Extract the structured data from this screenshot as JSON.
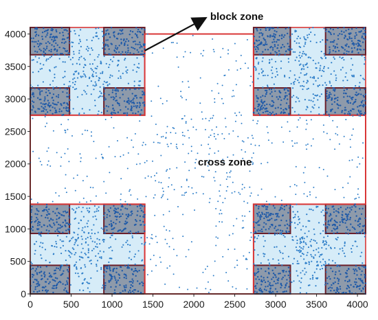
{
  "chart_data": {
    "type": "scatter",
    "title": "",
    "xlabel": "",
    "ylabel": "",
    "xlim": [
      0,
      4100
    ],
    "ylim": [
      0,
      4100
    ],
    "xticks": [
      "0",
      "500",
      "1000",
      "1500",
      "2000",
      "2500",
      "3000",
      "3500",
      "4000"
    ],
    "yticks": [
      "0",
      "500",
      "1000",
      "1500",
      "2000",
      "2500",
      "3000",
      "3500",
      "4000"
    ],
    "grid": false,
    "colors": {
      "points": "#2f7fc9",
      "points_dense": "#1f5aa8",
      "zone_outline": "#d93636",
      "block_outline": "#6b1f2a",
      "block_fill": "#8e9aaa",
      "district_fill": "#d6ecf8",
      "axis": "#222222"
    },
    "annotations": [
      {
        "text": "block zone",
        "x": 2200,
        "y": 4280,
        "arrow_to": [
          1350,
          3680
        ]
      },
      {
        "text": "cross zone",
        "x": 2050,
        "y": 2040
      }
    ],
    "zones": {
      "cross_zone": {
        "vertical_band": {
          "x": [
            1400,
            2730
          ],
          "y": [
            0,
            4000
          ]
        },
        "horizontal_band": {
          "x": [
            0,
            4100
          ],
          "y": [
            1380,
            2750
          ]
        }
      },
      "districts": [
        {
          "x": [
            0,
            1400
          ],
          "y": [
            2750,
            4100
          ]
        },
        {
          "x": [
            2730,
            4100
          ],
          "y": [
            2750,
            4100
          ]
        },
        {
          "x": [
            0,
            1400
          ],
          "y": [
            0,
            1380
          ]
        },
        {
          "x": [
            2730,
            4100
          ],
          "y": [
            0,
            1380
          ]
        }
      ],
      "blocks": [
        {
          "x": [
            0,
            480
          ],
          "y": [
            3680,
            4100
          ]
        },
        {
          "x": [
            900,
            1400
          ],
          "y": [
            3680,
            4100
          ]
        },
        {
          "x": [
            0,
            480
          ],
          "y": [
            2750,
            3170
          ]
        },
        {
          "x": [
            900,
            1400
          ],
          "y": [
            2750,
            3170
          ]
        },
        {
          "x": [
            2730,
            3180
          ],
          "y": [
            3680,
            4100
          ]
        },
        {
          "x": [
            3610,
            4100
          ],
          "y": [
            3680,
            4100
          ]
        },
        {
          "x": [
            2730,
            3180
          ],
          "y": [
            2750,
            3170
          ]
        },
        {
          "x": [
            3610,
            4100
          ],
          "y": [
            2750,
            3170
          ]
        },
        {
          "x": [
            0,
            480
          ],
          "y": [
            930,
            1380
          ]
        },
        {
          "x": [
            900,
            1400
          ],
          "y": [
            930,
            1380
          ]
        },
        {
          "x": [
            0,
            480
          ],
          "y": [
            0,
            440
          ]
        },
        {
          "x": [
            900,
            1400
          ],
          "y": [
            0,
            440
          ]
        },
        {
          "x": [
            2730,
            3180
          ],
          "y": [
            930,
            1380
          ]
        },
        {
          "x": [
            3610,
            4100
          ],
          "y": [
            930,
            1380
          ]
        },
        {
          "x": [
            2730,
            3180
          ],
          "y": [
            0,
            440
          ]
        },
        {
          "x": [
            3610,
            4100
          ],
          "y": [
            0,
            440
          ]
        }
      ]
    },
    "point_density": {
      "block": 110,
      "district_street": 240,
      "cross_zone": 520
    }
  }
}
